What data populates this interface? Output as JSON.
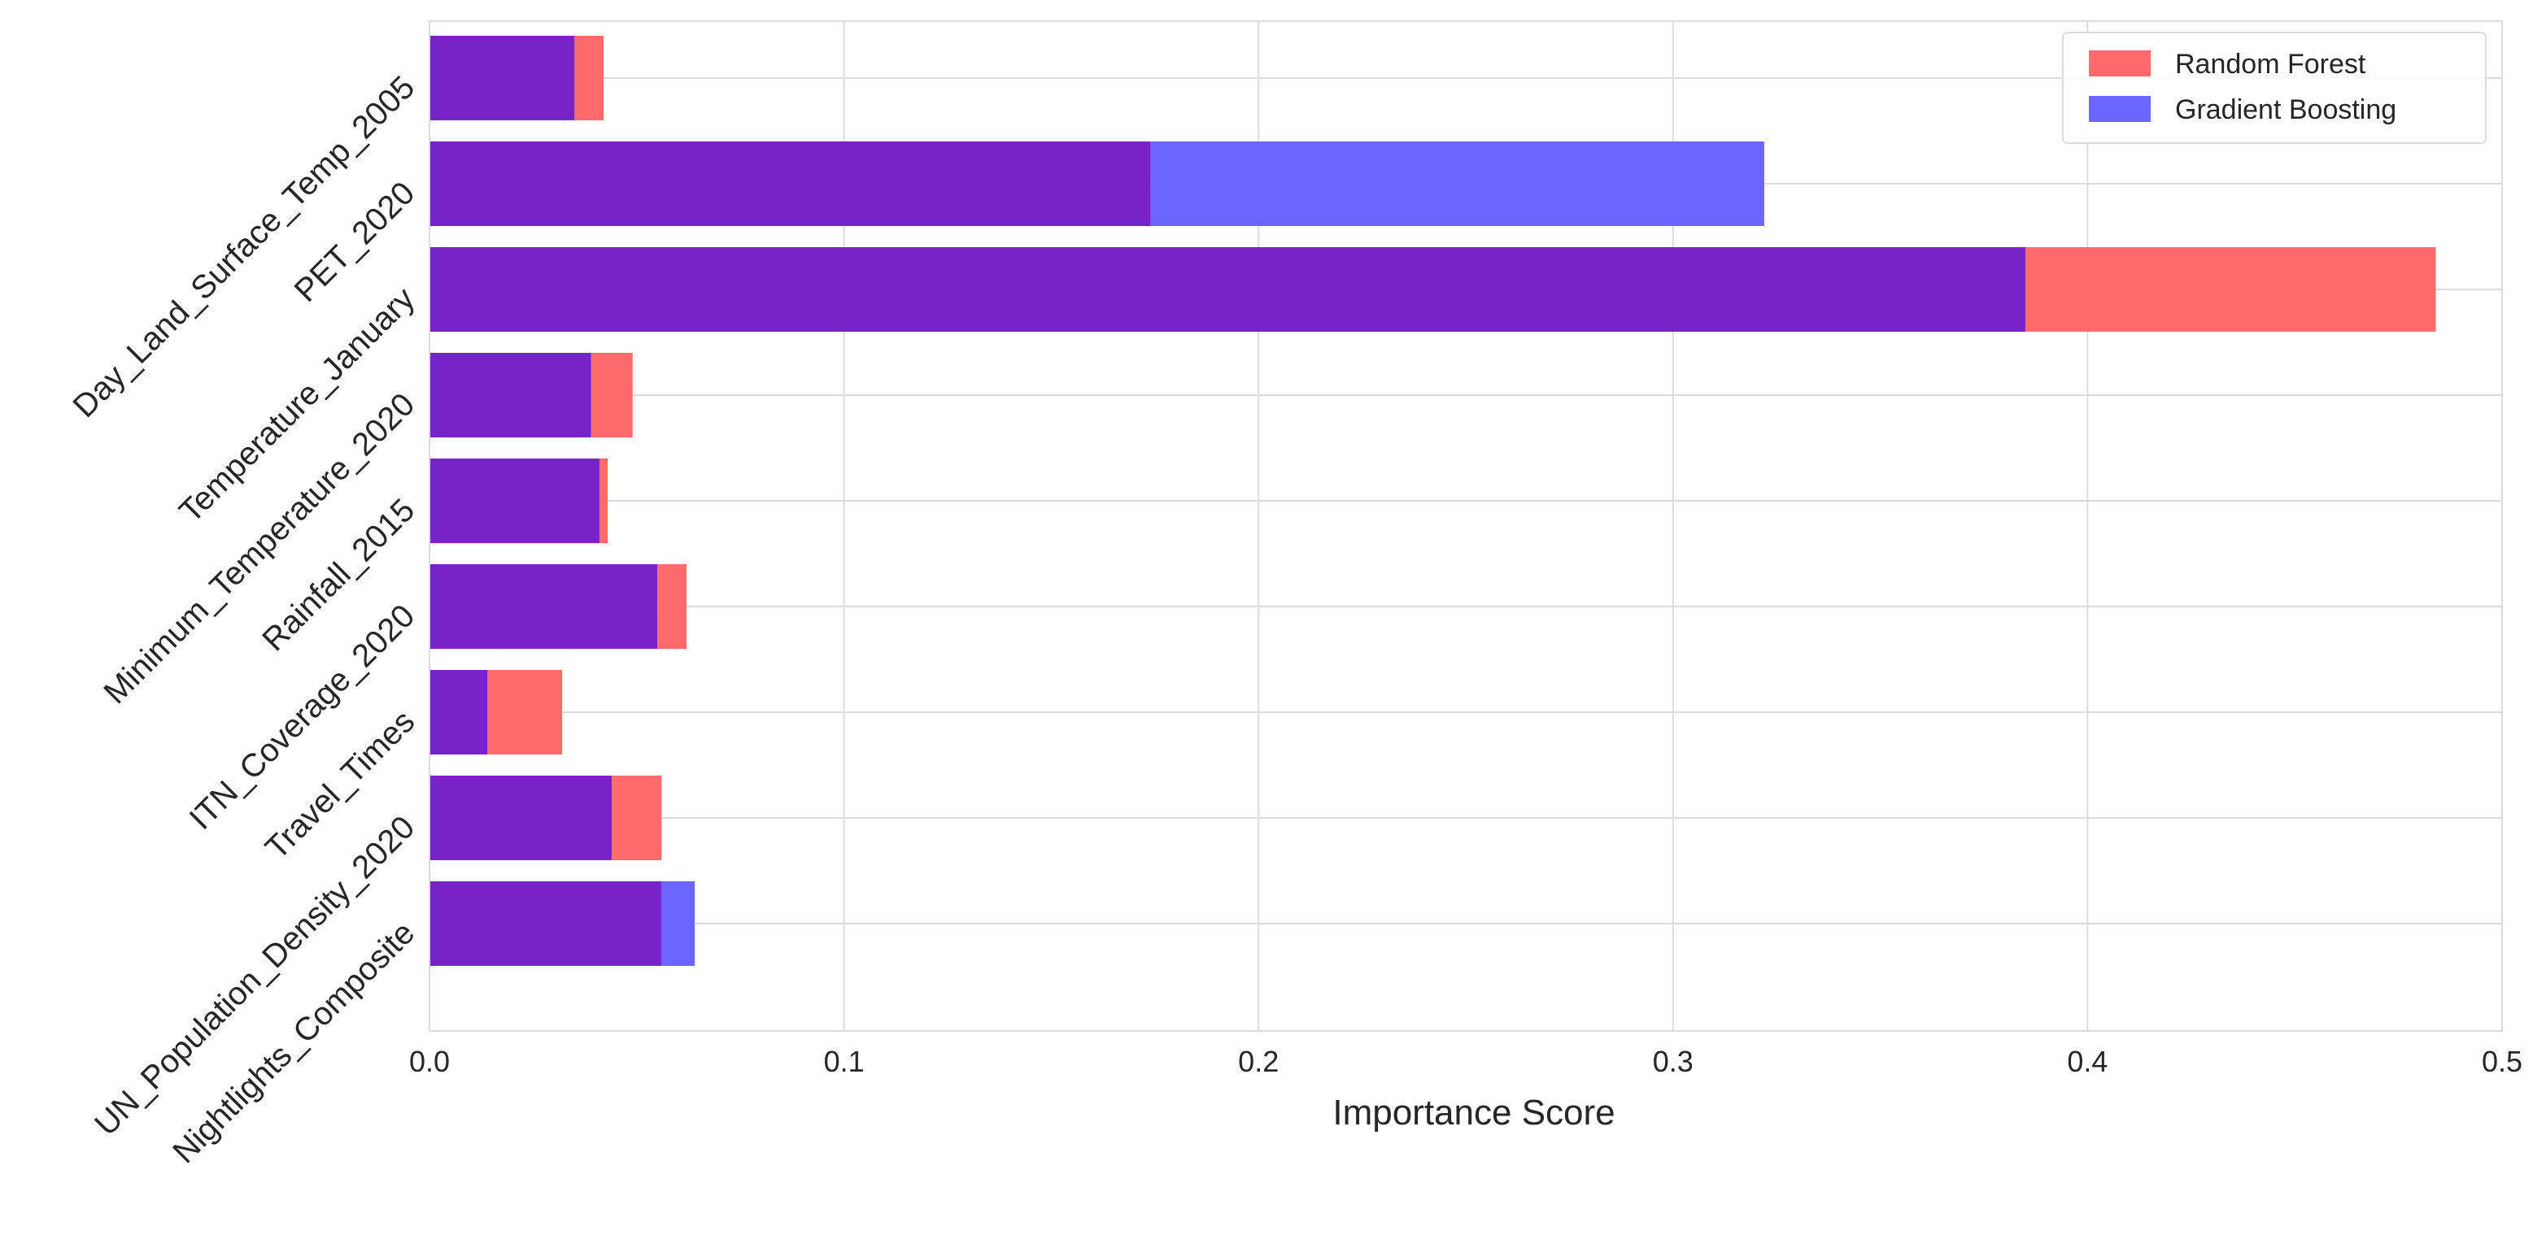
{
  "chart_data": {
    "type": "bar",
    "orientation": "horizontal",
    "categories": [
      "Day_Land_Surface_Temp_2005",
      "PET_2020",
      "Temperature_January",
      "Minimum_Temperature_2020",
      "Rainfall_2015",
      "ITN_Coverage_2020",
      "Travel_Times",
      "UN_Population_Density_2020",
      "Nightlights_Composite"
    ],
    "series": [
      {
        "name": "Random Forest",
        "color": "#ff6b6b",
        "values": [
          0.042,
          0.174,
          0.484,
          0.049,
          0.043,
          0.062,
          0.032,
          0.056,
          0.056
        ]
      },
      {
        "name": "Gradient Boosting",
        "color": "#6b64ff",
        "values": [
          0.035,
          0.322,
          0.385,
          0.039,
          0.041,
          0.055,
          0.014,
          0.044,
          0.064
        ]
      }
    ],
    "overlap_color": "#7822c9",
    "xlabel": "Importance Score",
    "ylabel": "",
    "xlim": [
      0,
      0.5
    ],
    "xticks": [
      "0.0",
      "0.1",
      "0.2",
      "0.3",
      "0.4",
      "0.5"
    ],
    "grid": true,
    "legend_position": "top-right"
  }
}
